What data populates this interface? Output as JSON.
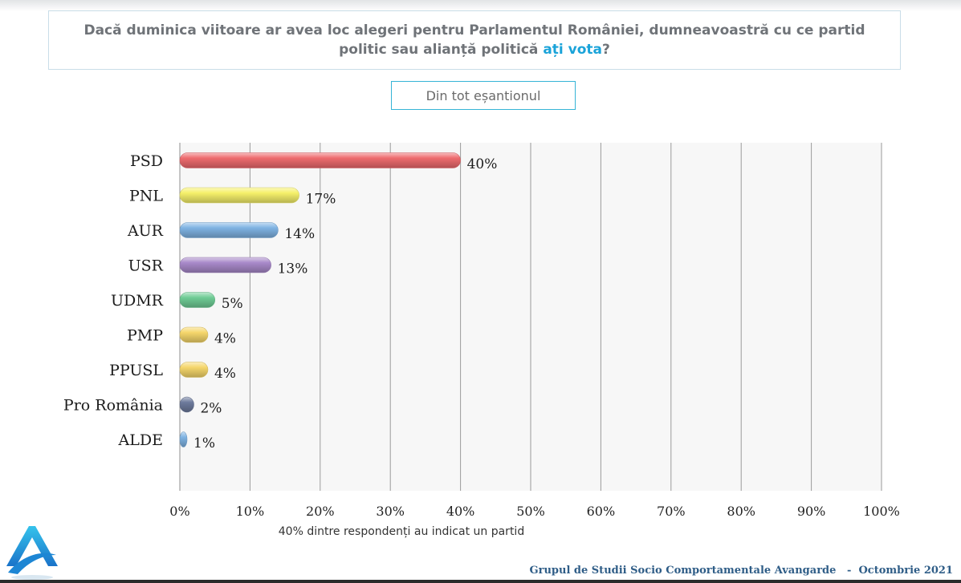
{
  "question": {
    "text_before": "Dacă duminica viitoare ar avea loc alegeri pentru Parlamentul României, dumneavoastră cu ce partid politic sau alianță politică ",
    "highlight": "ați vota",
    "text_after": "?"
  },
  "sample_label": "Din tot eșantionul",
  "footer": {
    "org": "Grupul de Studii Socio Comportamentale Avangarde",
    "separator": "-",
    "date": "Octombrie 2021"
  },
  "chart_data": {
    "type": "bar",
    "orientation": "horizontal",
    "categories": [
      "PSD",
      "PNL",
      "AUR",
      "USR",
      "UDMR",
      "PMP",
      "PPUSL",
      "Pro România",
      "ALDE"
    ],
    "values": [
      40,
      17,
      14,
      13,
      5,
      4,
      4,
      2,
      1
    ],
    "value_labels": [
      "40%",
      "17%",
      "14%",
      "13%",
      "5%",
      "4%",
      "4%",
      "2%",
      "1%"
    ],
    "colors": [
      "#ee6b6e",
      "#f5f06a",
      "#7fb3e3",
      "#a889c9",
      "#6fcc95",
      "#f5d66b",
      "#f5d66b",
      "#6d7a9c",
      "#7fb3e3"
    ],
    "xlim": [
      0,
      100
    ],
    "xticks": [
      0,
      10,
      20,
      30,
      40,
      50,
      60,
      70,
      80,
      90,
      100
    ],
    "xtick_labels": [
      "0%",
      "10%",
      "20%",
      "30%",
      "40%",
      "50%",
      "60%",
      "70%",
      "80%",
      "90%",
      "100%"
    ],
    "xlabel": "40% dintre respondenți au indicat un partid",
    "grid": true,
    "legend": false
  }
}
